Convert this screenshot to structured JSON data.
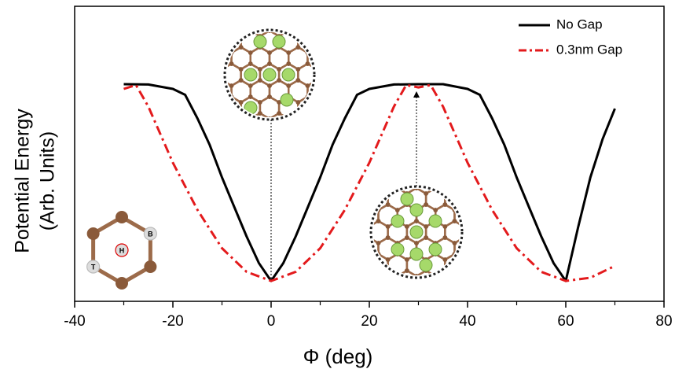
{
  "chart_data": {
    "type": "line",
    "xlabel": "Φ (deg)",
    "ylabel": [
      "Potential Energy",
      "(Arb. Units)"
    ],
    "xlim": [
      -40,
      80
    ],
    "xticks": [
      -40,
      -20,
      0,
      20,
      40,
      60,
      80
    ],
    "xminorticks": [
      -30,
      -10,
      10,
      30,
      50,
      70
    ],
    "ylim": [
      0,
      1
    ],
    "legend": "top-right",
    "series": [
      {
        "name": "No Gap",
        "color": "#000000",
        "style": "solid",
        "x": [
          -30,
          -25,
          -20,
          -17.5,
          -15,
          -12.5,
          -10,
          -7.5,
          -5,
          -2.5,
          0,
          2.5,
          5,
          7.5,
          10,
          12.5,
          15,
          17.5,
          20,
          25,
          30,
          35,
          40,
          42.5,
          45,
          47.5,
          50,
          52.5,
          55,
          57.5,
          60,
          62.5,
          65,
          67.5,
          70
        ],
        "values": [
          0.736,
          0.735,
          0.72,
          0.7,
          0.62,
          0.53,
          0.42,
          0.32,
          0.22,
          0.13,
          0.069,
          0.13,
          0.22,
          0.32,
          0.42,
          0.53,
          0.62,
          0.7,
          0.72,
          0.735,
          0.736,
          0.736,
          0.72,
          0.7,
          0.62,
          0.53,
          0.42,
          0.32,
          0.22,
          0.13,
          0.069,
          0.25,
          0.42,
          0.55,
          0.653
        ]
      },
      {
        "name": "0.3nm Gap",
        "color": "#e31a1c",
        "style": "dashdot",
        "x": [
          -30,
          -27.5,
          -25,
          -20,
          -15,
          -10,
          -5,
          0,
          5,
          10,
          15,
          20,
          25,
          27.5,
          30,
          32.5,
          35,
          40,
          45,
          50,
          55,
          60,
          65,
          70
        ],
        "values": [
          0.72,
          0.733,
          0.66,
          0.47,
          0.31,
          0.18,
          0.1,
          0.069,
          0.1,
          0.18,
          0.31,
          0.47,
          0.66,
          0.733,
          0.725,
          0.733,
          0.66,
          0.47,
          0.31,
          0.18,
          0.1,
          0.069,
          0.08,
          0.12
        ]
      }
    ],
    "inset_labels": [
      "T",
      "H",
      "B"
    ]
  }
}
